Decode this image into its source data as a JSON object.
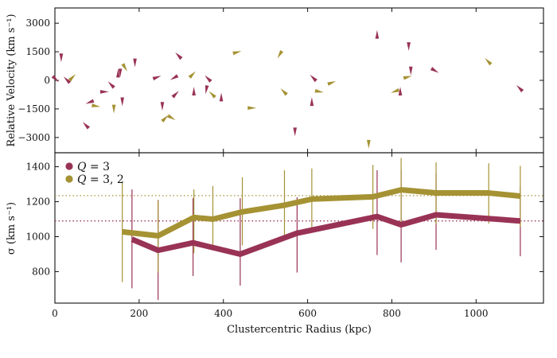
{
  "chart_data": [
    {
      "type": "scatter",
      "panel": "top",
      "title": "",
      "xlabel": "",
      "ylabel": "Relative Velocity (km s⁻¹)",
      "xlim": [
        0,
        1160
      ],
      "ylim": [
        -3800,
        3800
      ],
      "yticks": [
        -3000,
        -1500,
        0,
        1500,
        3000
      ],
      "ytick_labels": [
        "−3000",
        "−1500",
        "0",
        "1500",
        "3000"
      ],
      "marker": "triangle (arrow pointing toward the galaxy's direction)",
      "series": [
        {
          "name": "magenta members",
          "color": "#993355",
          "points": [
            {
              "x": 0,
              "y": 100,
              "dir": 315
            },
            {
              "x": 15,
              "y": 1250,
              "dir": 270
            },
            {
              "x": 30,
              "y": -10,
              "dir": 135
            },
            {
              "x": 75,
              "y": -2390,
              "dir": 135
            },
            {
              "x": 85,
              "y": -1130,
              "dir": 200
            },
            {
              "x": 115,
              "y": -600,
              "dir": 0
            },
            {
              "x": 135,
              "y": -260,
              "dir": 135
            },
            {
              "x": 150,
              "y": 310,
              "dir": 90
            },
            {
              "x": 155,
              "y": 450,
              "dir": 270
            },
            {
              "x": 160,
              "y": -1060,
              "dir": 270
            },
            {
              "x": 190,
              "y": 980,
              "dir": 270
            },
            {
              "x": 240,
              "y": 140,
              "dir": 20
            },
            {
              "x": 255,
              "y": -1300,
              "dir": 270
            },
            {
              "x": 285,
              "y": -760,
              "dir": 45
            },
            {
              "x": 285,
              "y": 160,
              "dir": 210
            },
            {
              "x": 295,
              "y": 1260,
              "dir": 135
            },
            {
              "x": 330,
              "y": -630,
              "dir": 90
            },
            {
              "x": 360,
              "y": -430,
              "dir": 260
            },
            {
              "x": 365,
              "y": 60,
              "dir": 135
            },
            {
              "x": 395,
              "y": -940,
              "dir": 90
            },
            {
              "x": 570,
              "y": -2640,
              "dir": 270
            },
            {
              "x": 610,
              "y": -1180,
              "dir": 90
            },
            {
              "x": 615,
              "y": 90,
              "dir": 135
            },
            {
              "x": 765,
              "y": 2350,
              "dir": 90
            },
            {
              "x": 820,
              "y": -630,
              "dir": 90
            },
            {
              "x": 840,
              "y": 1840,
              "dir": 270
            },
            {
              "x": 845,
              "y": 560,
              "dir": 270
            },
            {
              "x": 900,
              "y": 540,
              "dir": 330
            },
            {
              "x": 1105,
              "y": -450,
              "dir": 135
            }
          ]
        },
        {
          "name": "olive members",
          "color": "#a59233",
          "points": [
            {
              "x": 40,
              "y": 120,
              "dir": 45
            },
            {
              "x": 95,
              "y": -1340,
              "dir": 350
            },
            {
              "x": 140,
              "y": -1440,
              "dir": 270
            },
            {
              "x": 165,
              "y": 720,
              "dir": 300
            },
            {
              "x": 260,
              "y": -2030,
              "dir": 45
            },
            {
              "x": 275,
              "y": -1940,
              "dir": 330
            },
            {
              "x": 325,
              "y": 270,
              "dir": 45
            },
            {
              "x": 375,
              "y": -770,
              "dir": 135
            },
            {
              "x": 430,
              "y": 1460,
              "dir": 15
            },
            {
              "x": 465,
              "y": -1450,
              "dir": 0
            },
            {
              "x": 535,
              "y": 1400,
              "dir": 240
            },
            {
              "x": 545,
              "y": -630,
              "dir": 135
            },
            {
              "x": 625,
              "y": -580,
              "dir": 350
            },
            {
              "x": 655,
              "y": -140,
              "dir": 20
            },
            {
              "x": 745,
              "y": -3290,
              "dir": 270
            },
            {
              "x": 810,
              "y": -560,
              "dir": 200
            },
            {
              "x": 835,
              "y": 160,
              "dir": 15
            },
            {
              "x": 1030,
              "y": 960,
              "dir": 135
            }
          ]
        }
      ]
    },
    {
      "type": "line",
      "panel": "bottom",
      "title": "",
      "xlabel": "Clustercentric Radius (kpc)",
      "ylabel": "σ (km s⁻¹)",
      "xlim": [
        0,
        1160
      ],
      "ylim": [
        620,
        1480
      ],
      "xticks": [
        0,
        200,
        400,
        600,
        800,
        1000
      ],
      "xtick_labels": [
        "0",
        "200",
        "400",
        "600",
        "800",
        "1000"
      ],
      "yticks": [
        800,
        1000,
        1200,
        1400
      ],
      "ytick_labels": [
        "800",
        "1000",
        "1200",
        "1400"
      ],
      "legend": {
        "position": "top-left",
        "entries": [
          {
            "prefix": "Q",
            "suffix": " = 3",
            "color": "#993355"
          },
          {
            "prefix": "Q",
            "suffix": " = 3, 2",
            "color": "#a59233"
          }
        ]
      },
      "series": [
        {
          "name": "Q = 3",
          "color": "#993355",
          "reference": 1090,
          "x": [
            183,
            245,
            328,
            440,
            575,
            765,
            822,
            905,
            1105
          ],
          "values": [
            985,
            922,
            965,
            900,
            1020,
            1115,
            1068,
            1125,
            1090
          ],
          "err_low": [
            705,
            638,
            775,
            720,
            795,
            895,
            853,
            925,
            888
          ],
          "err_high": [
            1270,
            1210,
            1220,
            1220,
            1225,
            1380,
            1380,
            1360,
            1290
          ]
        },
        {
          "name": "Q = 3, 2",
          "color": "#a59233",
          "reference": 1235,
          "x": [
            160,
            245,
            330,
            375,
            445,
            545,
            610,
            755,
            822,
            905,
            1030,
            1105
          ],
          "values": [
            1028,
            1005,
            1110,
            1100,
            1142,
            1180,
            1215,
            1228,
            1268,
            1250,
            1250,
            1232
          ],
          "err_low": [
            740,
            795,
            905,
            930,
            950,
            1000,
            1050,
            1045,
            1080,
            1070,
            1075,
            1055
          ],
          "err_high": [
            1310,
            1205,
            1270,
            1290,
            1340,
            1380,
            1390,
            1410,
            1450,
            1425,
            1420,
            1405
          ]
        }
      ]
    }
  ]
}
